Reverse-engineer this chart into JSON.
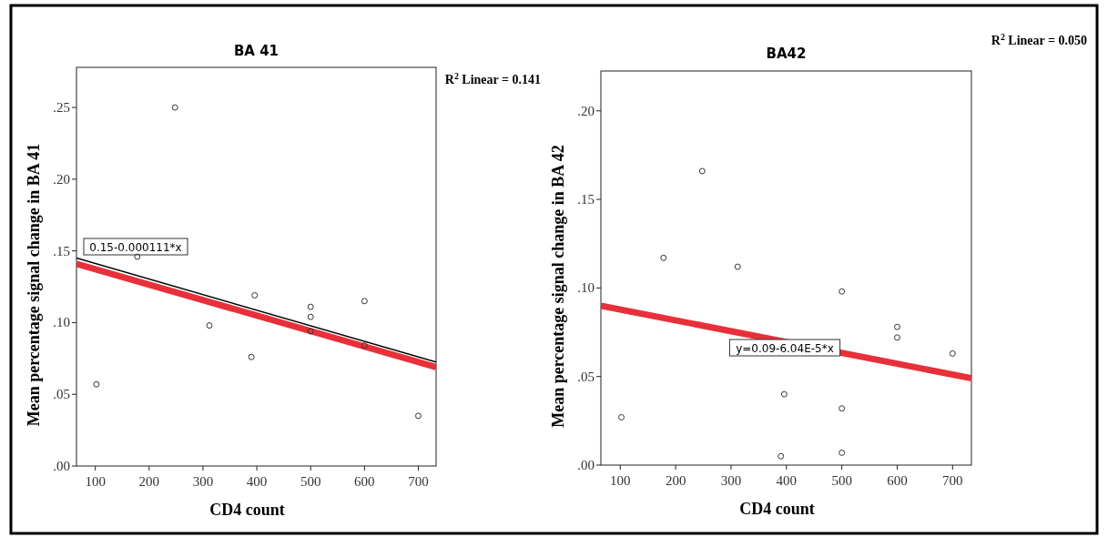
{
  "chart_data": [
    {
      "type": "scatter",
      "title": "BA 41",
      "xlabel": "CD4 count",
      "ylabel": "Mean percentage signal change in BA 41",
      "grid": false,
      "xlim": [
        65,
        733
      ],
      "xticks": [
        100,
        200,
        300,
        400,
        500,
        600,
        700
      ],
      "ylim": [
        0,
        0.278
      ],
      "yticks": [
        {
          "value": 0,
          "label": ".00"
        },
        {
          "value": 0.05,
          "label": ".05"
        },
        {
          "value": 0.1,
          "label": ".10"
        },
        {
          "value": 0.15,
          "label": ".15"
        },
        {
          "value": 0.2,
          "label": ".20"
        },
        {
          "value": 0.25,
          "label": ".25"
        }
      ],
      "series": [
        {
          "type": "scatter",
          "marker": "circle",
          "color": "#333333",
          "x": [
            102,
            178,
            248,
            312,
            390,
            396,
            500,
            500,
            500,
            600,
            600,
            700
          ],
          "values": [
            0.057,
            0.146,
            0.25,
            0.098,
            0.076,
            0.119,
            0.111,
            0.104,
            0.094,
            0.115,
            0.084,
            0.035
          ]
        },
        {
          "type": "line",
          "marker": "none",
          "color": "#000000",
          "x": [
            65,
            733
          ],
          "values": [
            0.145,
            0.0725
          ]
        },
        {
          "type": "line",
          "marker": "none",
          "color": "#e8303a",
          "x": [
            65,
            733
          ],
          "values": [
            0.141,
            0.069
          ]
        }
      ],
      "annotations": [
        "0.15-0.000111*x",
        "R$^{2}$ Linear = 0.141"
      ]
    },
    {
      "type": "scatter",
      "title": "BA42",
      "xlabel": "CD4 count",
      "ylabel": "Mean percentage signal change in BA 42",
      "grid": false,
      "xlim": [
        65,
        734
      ],
      "xticks": [
        100,
        200,
        300,
        400,
        500,
        600,
        700
      ],
      "ylim": [
        0,
        0.2225
      ],
      "yticks": [
        {
          "value": 0,
          "label": ".00"
        },
        {
          "value": 0.05,
          "label": ".05"
        },
        {
          "value": 0.1,
          "label": ".10"
        },
        {
          "value": 0.15,
          "label": ".15"
        },
        {
          "value": 0.2,
          "label": ".20"
        }
      ],
      "series": [
        {
          "type": "scatter",
          "marker": "circle",
          "color": "#333333",
          "x": [
            102,
            178,
            248,
            312,
            390,
            396,
            500,
            500,
            500,
            600,
            600,
            700
          ],
          "values": [
            0.027,
            0.117,
            0.166,
            0.112,
            0.005,
            0.04,
            0.098,
            0.032,
            0.007,
            0.078,
            0.072,
            0.063
          ]
        },
        {
          "type": "line",
          "marker": "none",
          "color": "#e8303a",
          "x": [
            65,
            734
          ],
          "values": [
            0.09,
            0.049
          ]
        }
      ],
      "annotations": [
        "y=0.09-6.04E-5*x",
        "R$^{2}$ Linear = 0.050"
      ]
    }
  ]
}
